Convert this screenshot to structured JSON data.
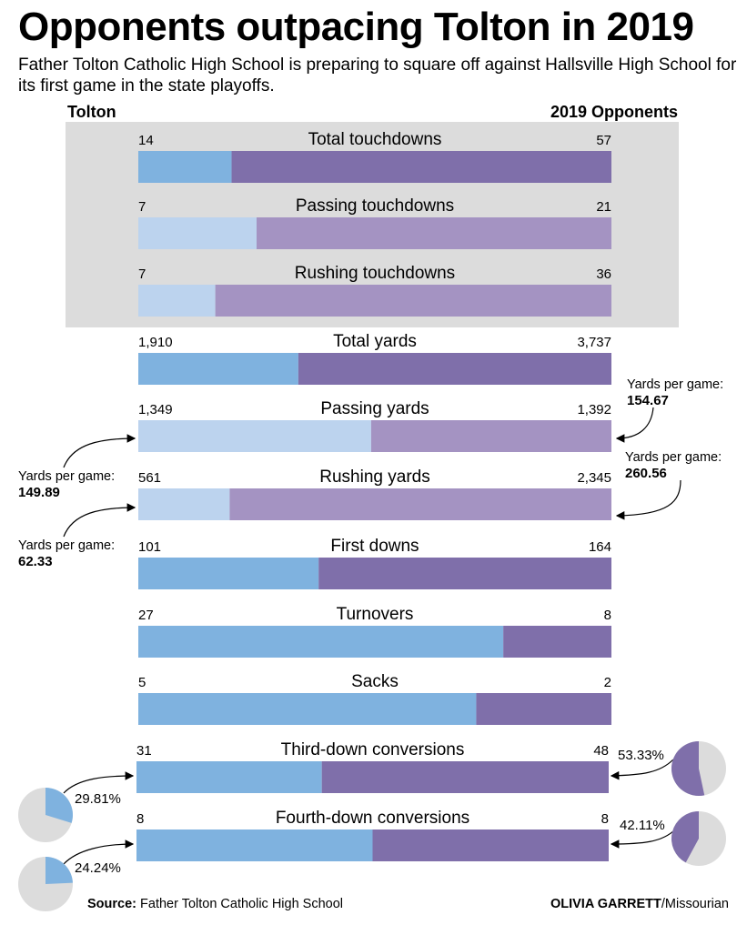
{
  "header": {
    "title": "Opponents outpacing Tolton in 2019",
    "subtitle": "Father Tolton Catholic High School is preparing to square off against Hallsville High School for its first game in the state playoffs.",
    "left_label": "Tolton",
    "right_label": "2019 Opponents"
  },
  "colors": {
    "tolton": "#7fb2df",
    "tolton_light": "#bcd3ee",
    "opponents": "#7f6faa",
    "opponents_light": "#a493c2",
    "panel": "#dcdcdc",
    "pie_rest": "#dcdcdc"
  },
  "chart_data": {
    "type": "bar",
    "layout": "stacked 100% horizontal comparison",
    "categories": [
      "Total touchdowns",
      "Passing touchdowns",
      "Rushing touchdowns",
      "Total yards",
      "Passing yards",
      "Rushing yards",
      "First downs",
      "Turnovers",
      "Sacks",
      "Third-down conversions",
      "Fourth-down conversions"
    ],
    "series": [
      {
        "name": "Tolton",
        "values": [
          14,
          7,
          7,
          1910,
          1349,
          561,
          101,
          27,
          5,
          31,
          8
        ],
        "labels": [
          "14",
          "7",
          "7",
          "1,910",
          "1,349",
          "561",
          "101",
          "27",
          "5",
          "31",
          "8"
        ]
      },
      {
        "name": "2019 Opponents",
        "values": [
          57,
          21,
          36,
          3737,
          1392,
          2345,
          164,
          8,
          2,
          48,
          8
        ],
        "labels": [
          "57",
          "21",
          "36",
          "3,737",
          "1,392",
          "2,345",
          "164",
          "8",
          "2",
          "48",
          "8"
        ]
      }
    ],
    "light_rows": [
      1,
      2,
      4,
      5
    ],
    "callouts": [
      {
        "text": "Yards per game:",
        "value": "154.67"
      },
      {
        "text": "Yards per game:",
        "value": "260.56"
      },
      {
        "text": "Yards per game:",
        "value": "149.89"
      },
      {
        "text": "Yards per game:",
        "value": "62.33"
      }
    ],
    "pies": [
      {
        "label": "29.81%",
        "value": 29.81
      },
      {
        "label": "24.24%",
        "value": 24.24
      },
      {
        "label": "53.33%",
        "value": 53.33
      },
      {
        "label": "42.11%",
        "value": 42.11
      }
    ]
  },
  "footer": {
    "source_label": "Source:",
    "source_text": " Father Tolton Catholic High School",
    "credit_name": "OLIVIA GARRETT",
    "credit_org": "/Missourian"
  }
}
